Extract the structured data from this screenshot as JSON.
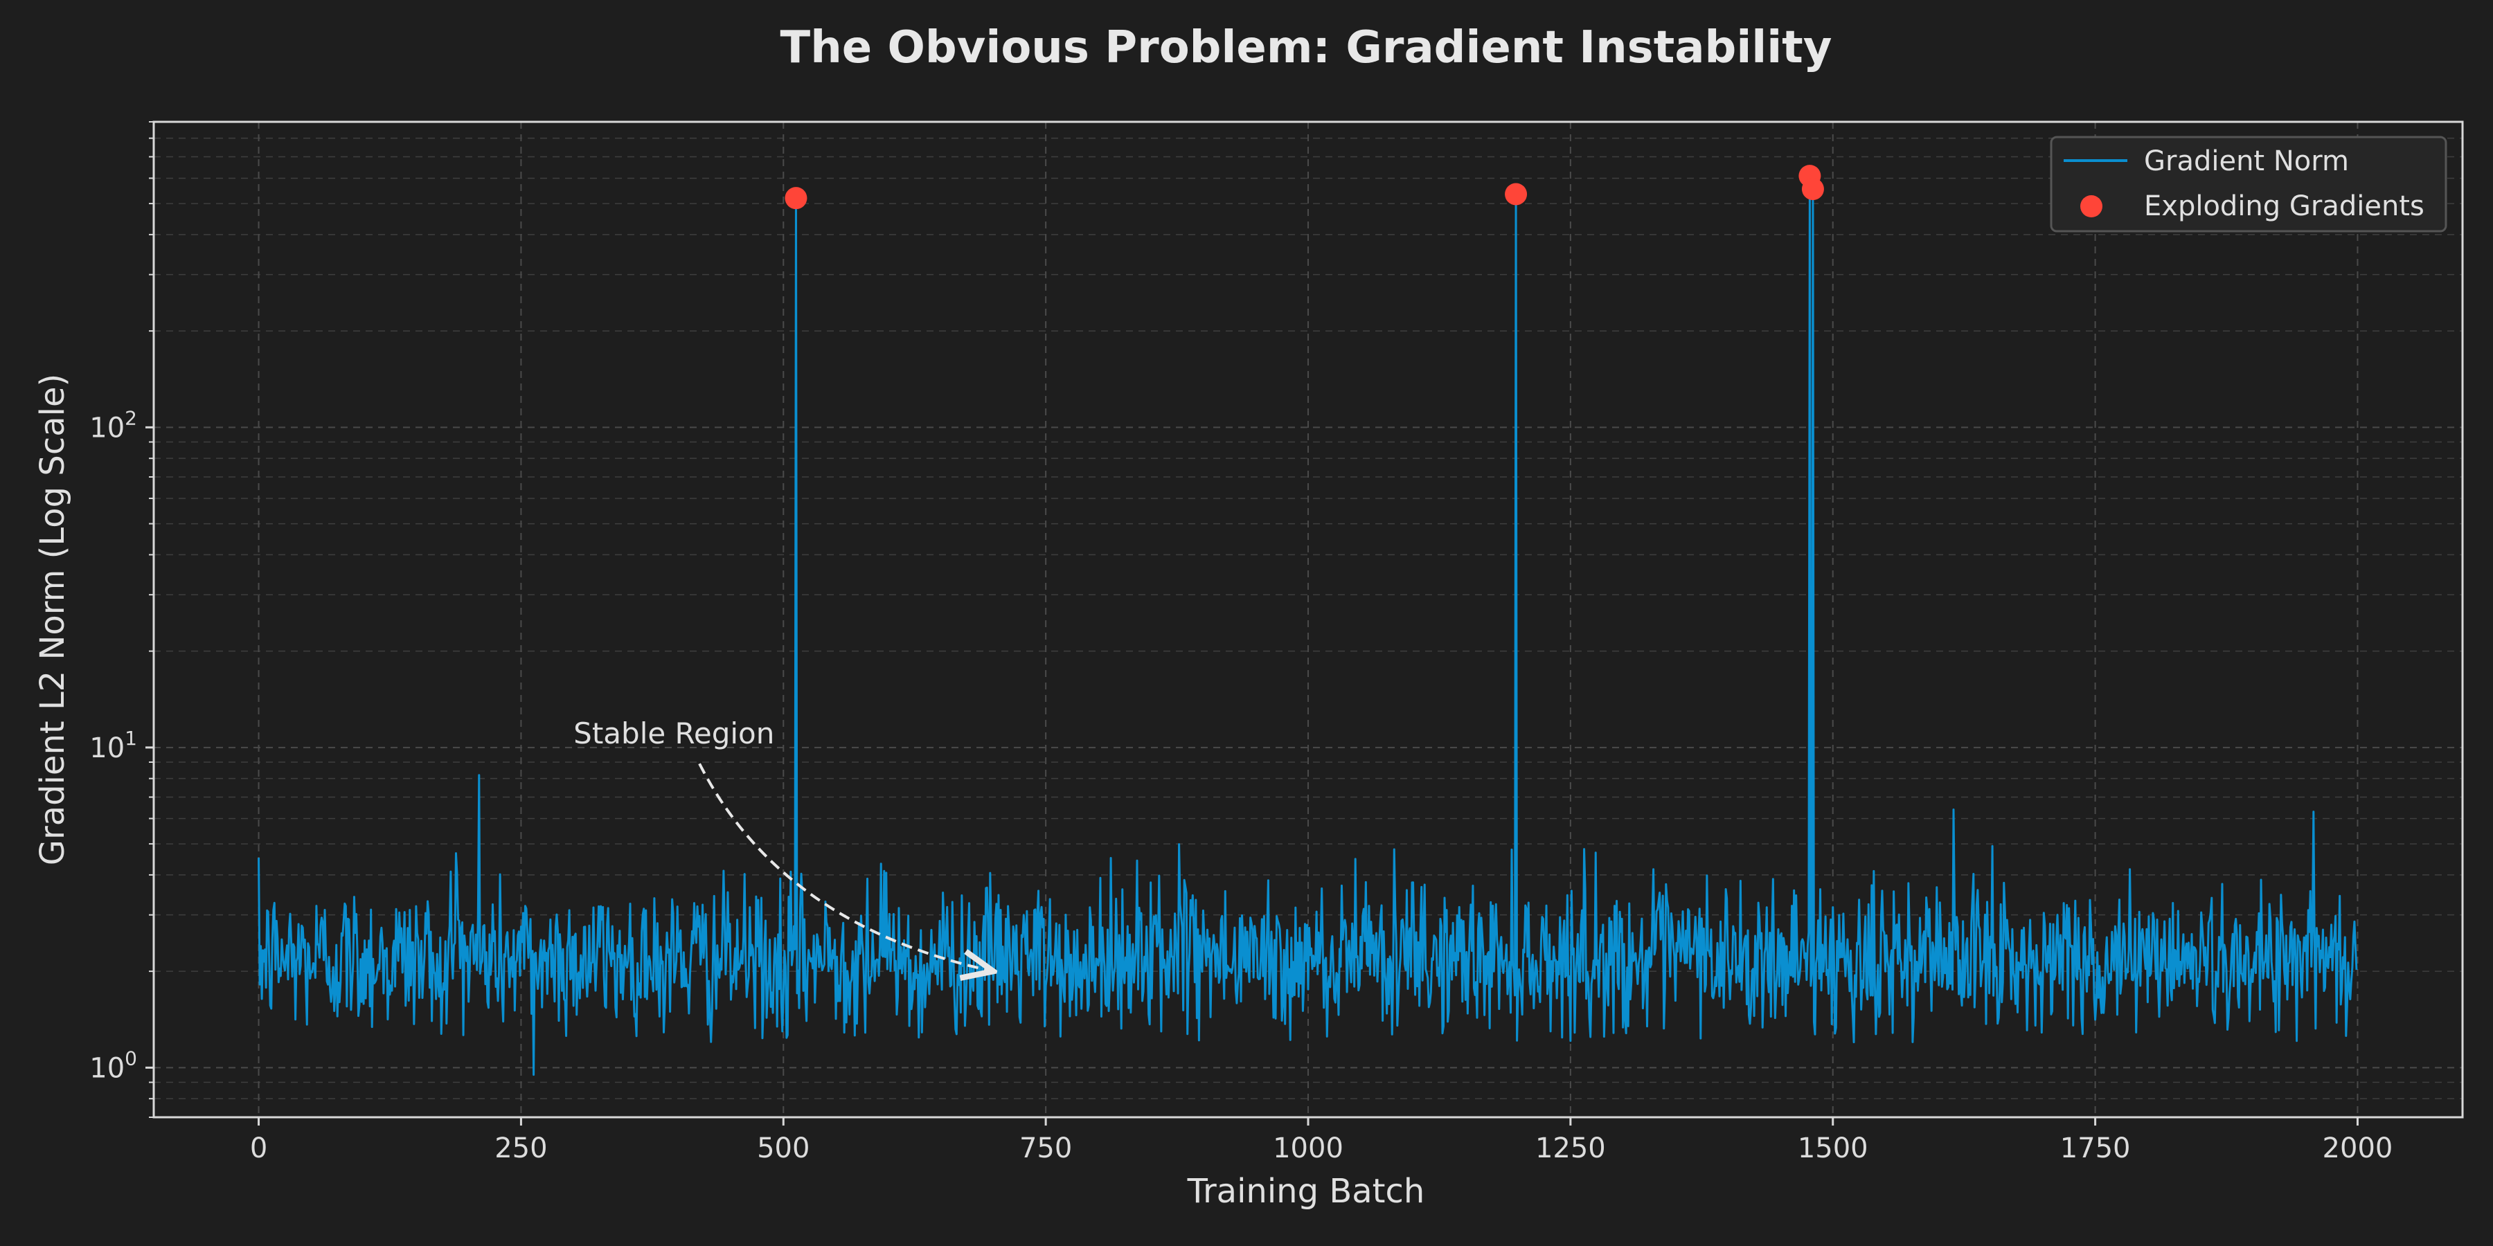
{
  "chart_data": {
    "type": "line",
    "title": "The Obvious Problem: Gradient Instability",
    "xlabel": "Training Batch",
    "ylabel": "Gradient L2 Norm (Log Scale)",
    "xlim": [
      -100,
      2100
    ],
    "ylim": [
      0.7,
      900
    ],
    "yscale": "log",
    "grid": true,
    "legend_position": "top-right",
    "x_ticks": [
      0,
      250,
      500,
      750,
      1000,
      1250,
      1500,
      1750,
      2000
    ],
    "x_tick_labels": [
      "0",
      "250",
      "500",
      "750",
      "1000",
      "1250",
      "1500",
      "1750",
      "2000"
    ],
    "y_ticks": [
      1,
      10,
      100
    ],
    "y_tick_labels": [
      {
        "base": "10",
        "exp": "0"
      },
      {
        "base": "10",
        "exp": "1"
      },
      {
        "base": "10",
        "exp": "2"
      }
    ],
    "series": [
      {
        "name": "Gradient Norm",
        "kind": "line",
        "color": "#0a8fd0",
        "x_range": [
          0,
          1999
        ],
        "typical_value": 2.2,
        "typical_band": [
          1.2,
          5
        ],
        "notable_values": [
          {
            "x": 210,
            "y": 8.2
          },
          {
            "x": 262,
            "y": 0.95
          },
          {
            "x": 1615,
            "y": 6.4
          },
          {
            "x": 1958,
            "y": 6.3
          }
        ],
        "spikes": [
          {
            "x": 512,
            "y": 520
          },
          {
            "x": 1198,
            "y": 535
          },
          {
            "x": 1478,
            "y": 610
          },
          {
            "x": 1481,
            "y": 555
          }
        ]
      },
      {
        "name": "Exploding Gradients",
        "kind": "scatter",
        "color": "#ff4538",
        "points": [
          {
            "x": 512,
            "y": 520
          },
          {
            "x": 1198,
            "y": 535
          },
          {
            "x": 1478,
            "y": 610
          },
          {
            "x": 1481,
            "y": 555
          }
        ]
      }
    ],
    "annotations": [
      {
        "text": "Stable Region",
        "text_at": {
          "x": 300,
          "y": 10.3
        },
        "arrow_from": {
          "x": 420,
          "y": 8.9
        },
        "arrow_to": {
          "x": 700,
          "y": 2.0
        }
      }
    ]
  },
  "colors": {
    "background": "#1e1e1e",
    "axes_frame": "#d8d8d8",
    "grid": "#4a4a4a",
    "text": "#e0e0e0"
  }
}
